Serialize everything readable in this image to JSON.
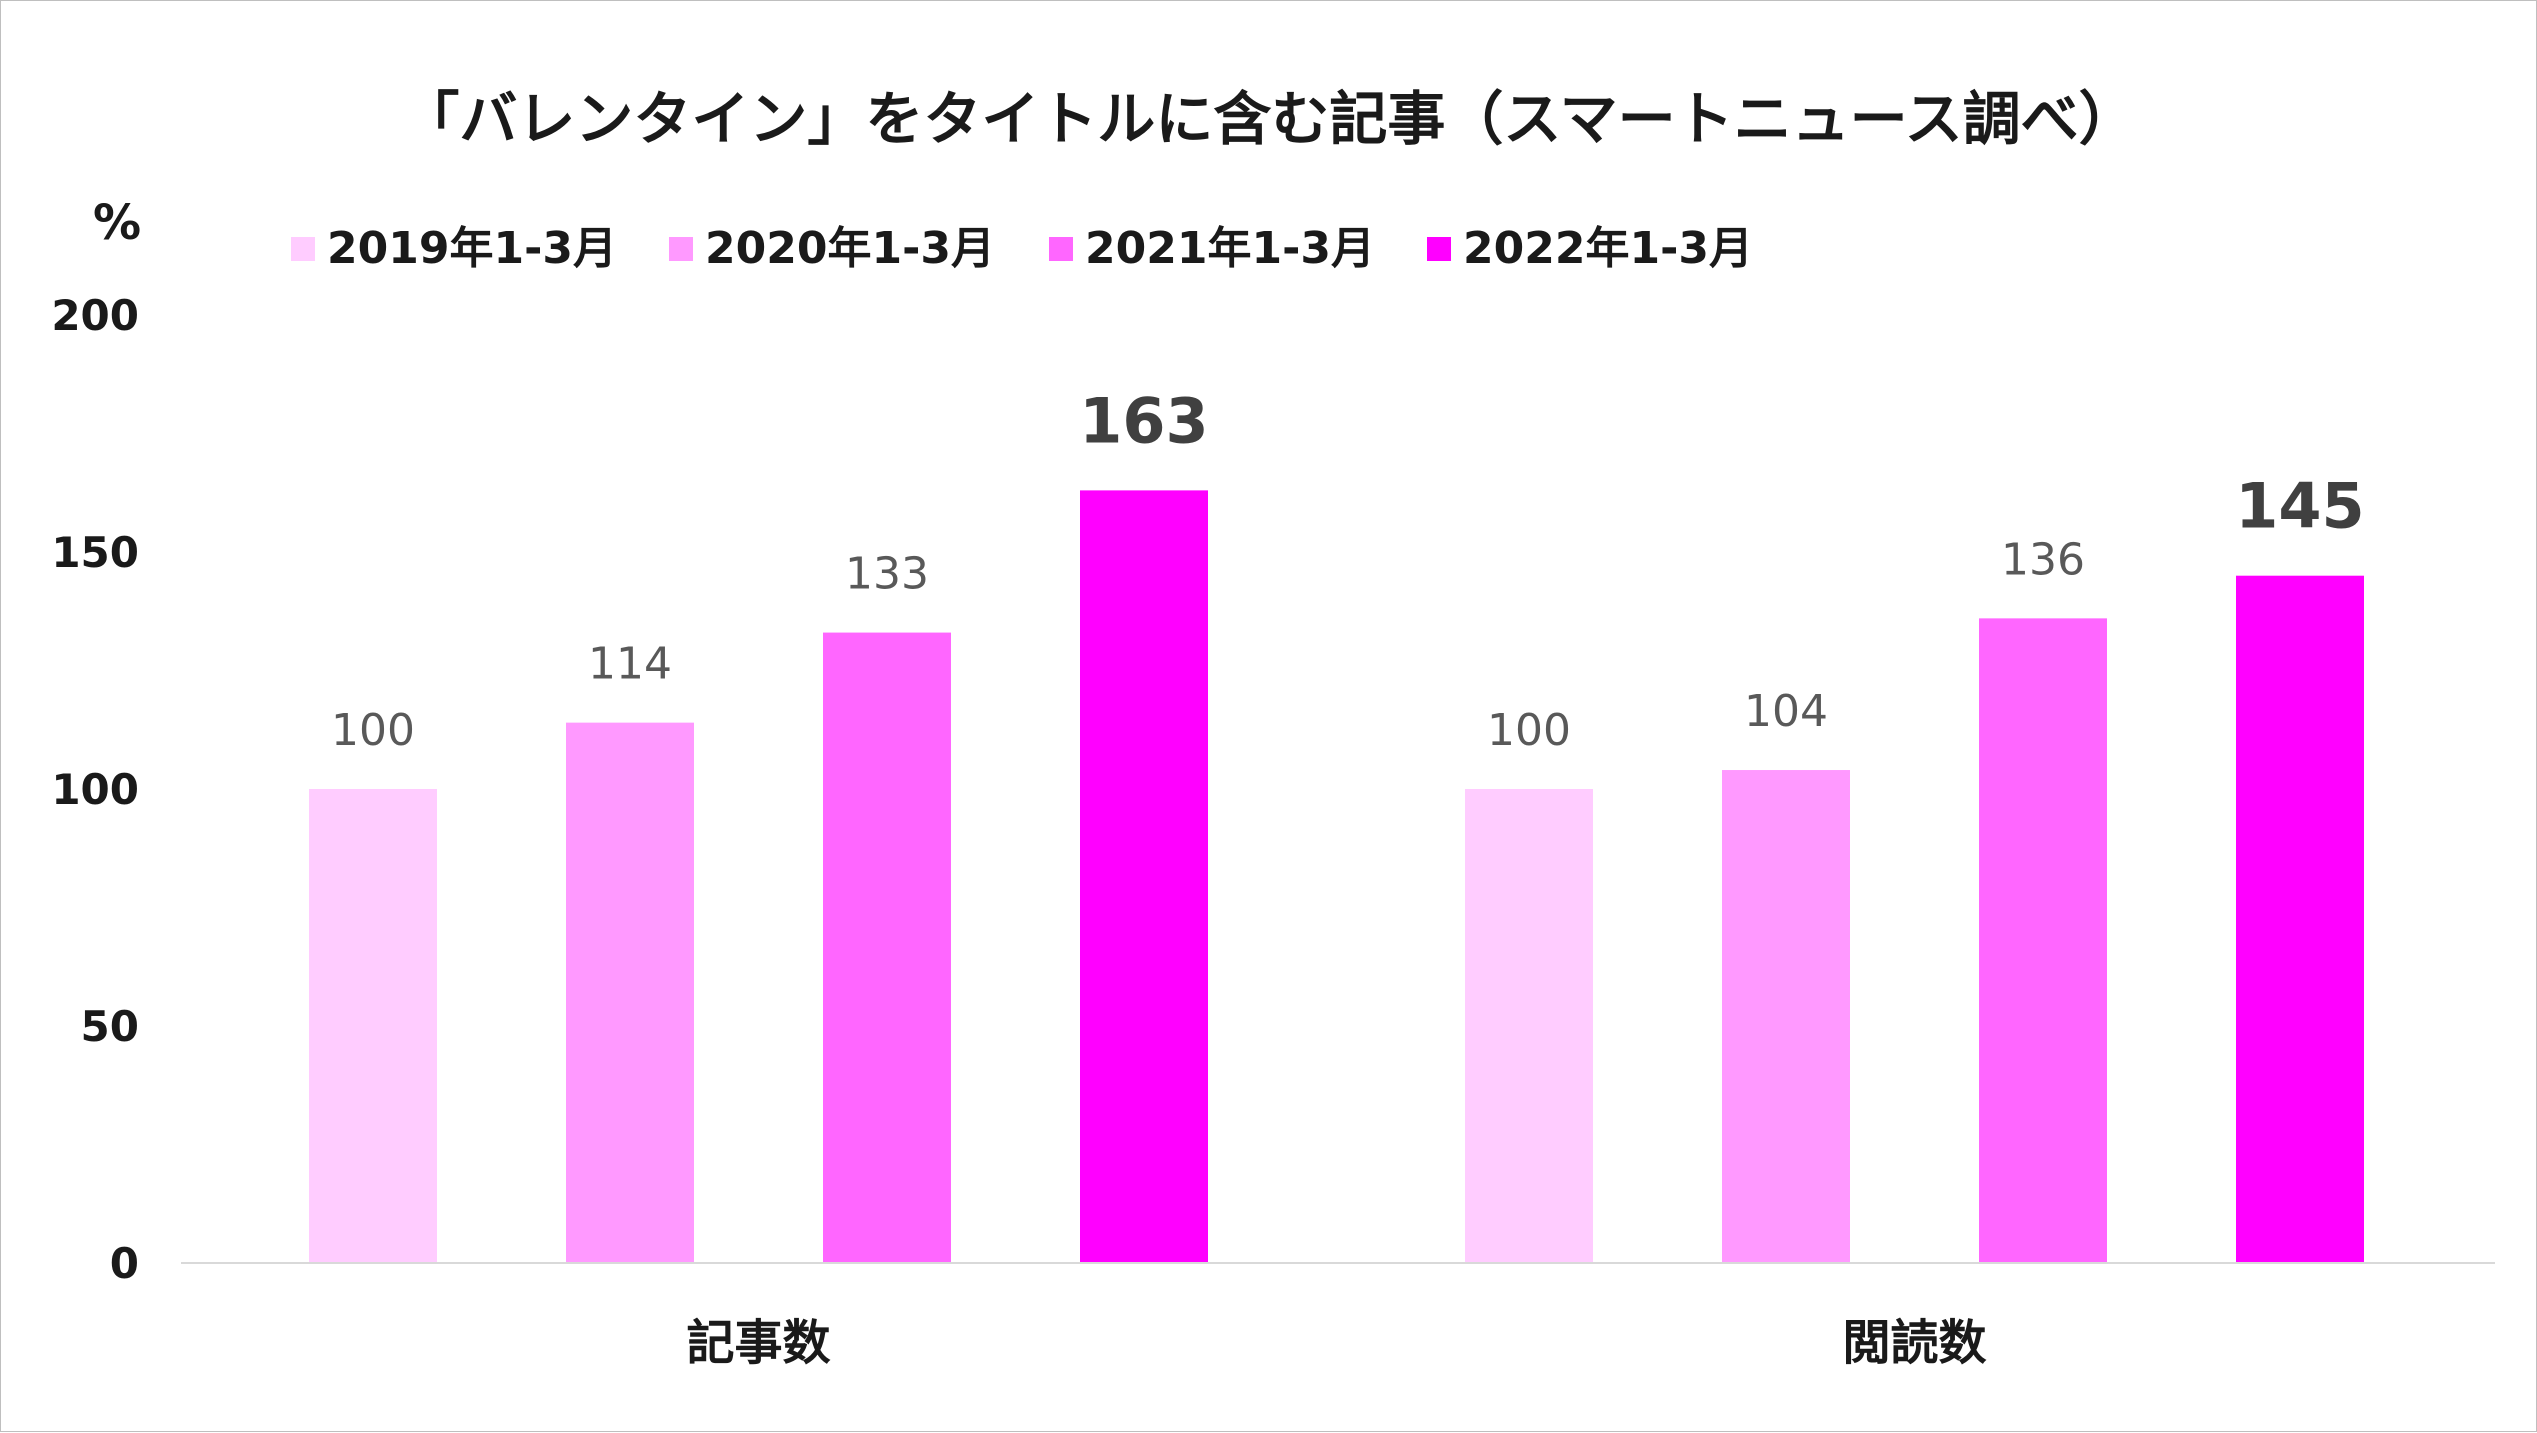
{
  "chart_data": {
    "type": "bar",
    "title": "「バレンタイン」をタイトルに含む記事（スマートニュース調べ）",
    "ylabel": "%",
    "xlabel": "",
    "ylim": [
      0,
      200
    ],
    "yticks": [
      0,
      50,
      100,
      150,
      200
    ],
    "grid": false,
    "legend_position": "top",
    "categories": [
      "記事数",
      "閲読数"
    ],
    "series": [
      {
        "name": "2019年1-3月",
        "color": "#FFCCFF",
        "values": [
          100,
          100
        ],
        "emphasis": false
      },
      {
        "name": "2020年1-3月",
        "color": "#FF99FF",
        "values": [
          114,
          104
        ],
        "emphasis": false
      },
      {
        "name": "2021年1-3月",
        "color": "#FF66FF",
        "values": [
          133,
          136
        ],
        "emphasis": false
      },
      {
        "name": "2022年1-3月",
        "color": "#FF00FF",
        "values": [
          163,
          145
        ],
        "emphasis": true
      }
    ]
  }
}
